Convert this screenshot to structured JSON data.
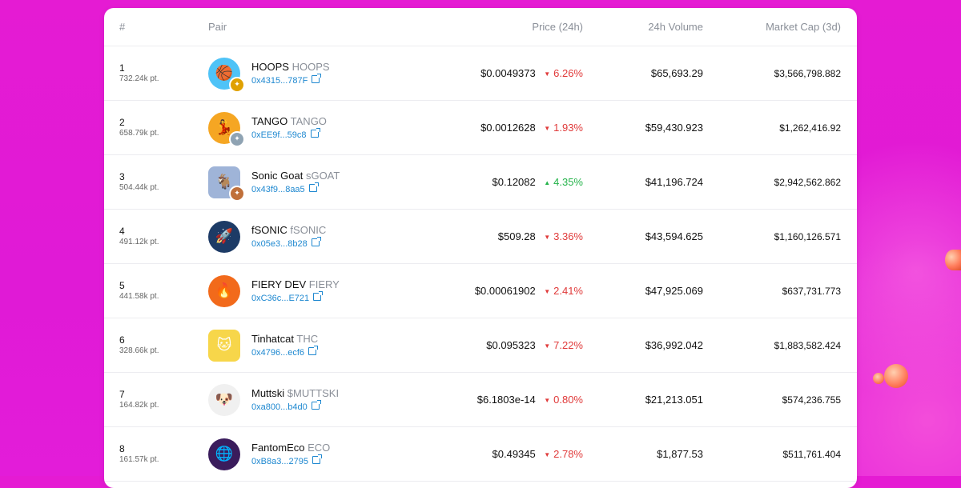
{
  "headers": {
    "rank": "#",
    "pair": "Pair",
    "price": "Price (24h)",
    "volume": "24h Volume",
    "mcap": "Market Cap (3d)"
  },
  "rows": [
    {
      "rank": "1",
      "points": "732.24k pt.",
      "name": "HOOPS",
      "symbol": "HOOPS",
      "address": "0x4315...787F",
      "price": "$0.0049373",
      "change": "6.26%",
      "direction": "down",
      "volume": "$65,693.29",
      "mcap": "$3,566,798.882",
      "icon": "hoops-avatar-icon",
      "medal": "gold-medal-icon",
      "color": "#4fc3f7",
      "medal_color": "#e0a100"
    },
    {
      "rank": "2",
      "points": "658.79k pt.",
      "name": "TANGO",
      "symbol": "TANGO",
      "address": "0xEE9f...59c8",
      "price": "$0.0012628",
      "change": "1.93%",
      "direction": "down",
      "volume": "$59,430.923",
      "mcap": "$1,262,416.92",
      "icon": "tango-avatar-icon",
      "medal": "silver-medal-icon",
      "color": "#f5a623",
      "medal_color": "#8fa3b3"
    },
    {
      "rank": "3",
      "points": "504.44k pt.",
      "name": "Sonic Goat",
      "symbol": "sGOAT",
      "address": "0x43f9...8aa5",
      "price": "$0.12082",
      "change": "4.35%",
      "direction": "up",
      "volume": "$41,196.724",
      "mcap": "$2,942,562.862",
      "icon": "sonic-goat-avatar-icon",
      "medal": "bronze-medal-icon",
      "color": "#9fb4d8",
      "medal_color": "#c0703a"
    },
    {
      "rank": "4",
      "points": "491.12k pt.",
      "name": "fSONIC",
      "symbol": "fSONIC",
      "address": "0x05e3...8b28",
      "price": "$509.28",
      "change": "3.36%",
      "direction": "down",
      "volume": "$43,594.625",
      "mcap": "$1,160,126.571",
      "icon": "fsonic-avatar-icon",
      "color": "#1d3b66"
    },
    {
      "rank": "5",
      "points": "441.58k pt.",
      "name": "FIERY DEV",
      "symbol": "FIERY",
      "address": "0xC36c...E721",
      "price": "$0.00061902",
      "change": "2.41%",
      "direction": "down",
      "volume": "$47,925.069",
      "mcap": "$637,731.773",
      "icon": "fiery-dev-avatar-icon",
      "color": "#f26a1b"
    },
    {
      "rank": "6",
      "points": "328.66k pt.",
      "name": "Tinhatcat",
      "symbol": "THC",
      "address": "0x4796...ecf6",
      "price": "$0.095323",
      "change": "7.22%",
      "direction": "down",
      "volume": "$36,992.042",
      "mcap": "$1,883,582.424",
      "icon": "tinhatcat-avatar-icon",
      "color": "#f7d64a"
    },
    {
      "rank": "7",
      "points": "164.82k pt.",
      "name": "Muttski",
      "symbol": "$MUTTSKI",
      "address": "0xa800...b4d0",
      "price": "$6.1803e-14",
      "change": "0.80%",
      "direction": "down",
      "volume": "$21,213.051",
      "mcap": "$574,236.755",
      "icon": "muttski-avatar-icon",
      "color": "#f0f0f0"
    },
    {
      "rank": "8",
      "points": "161.57k pt.",
      "name": "FantomEco",
      "symbol": "ECO",
      "address": "0xB8a3...2795",
      "price": "$0.49345",
      "change": "2.78%",
      "direction": "down",
      "volume": "$1,877.53",
      "mcap": "$511,761.404",
      "icon": "fantomeco-avatar-icon",
      "color": "#3a1c5c"
    }
  ]
}
